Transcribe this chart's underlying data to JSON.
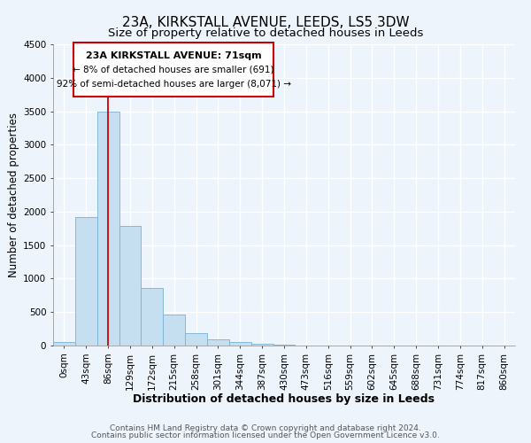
{
  "title": "23A, KIRKSTALL AVENUE, LEEDS, LS5 3DW",
  "subtitle": "Size of property relative to detached houses in Leeds",
  "xlabel": "Distribution of detached houses by size in Leeds",
  "ylabel": "Number of detached properties",
  "bar_labels": [
    "0sqm",
    "43sqm",
    "86sqm",
    "129sqm",
    "172sqm",
    "215sqm",
    "258sqm",
    "301sqm",
    "344sqm",
    "387sqm",
    "430sqm",
    "473sqm",
    "516sqm",
    "559sqm",
    "602sqm",
    "645sqm",
    "688sqm",
    "731sqm",
    "774sqm",
    "817sqm",
    "860sqm"
  ],
  "bar_values": [
    50,
    1920,
    3500,
    1790,
    860,
    460,
    185,
    95,
    55,
    30,
    10,
    5,
    0,
    0,
    0,
    0,
    0,
    0,
    0,
    0,
    0
  ],
  "bar_color": "#c5dff0",
  "bar_edge_color": "#7ab0d4",
  "ylim": [
    0,
    4500
  ],
  "yticks": [
    0,
    500,
    1000,
    1500,
    2000,
    2500,
    3000,
    3500,
    4000,
    4500
  ],
  "property_line_x": 1.975,
  "property_line_color": "#cc0000",
  "annotation_title": "23A KIRKSTALL AVENUE: 71sqm",
  "annotation_line1": "← 8% of detached houses are smaller (691)",
  "annotation_line2": "92% of semi-detached houses are larger (8,071) →",
  "annotation_box_color": "#ffffff",
  "annotation_box_edge_color": "#cc0000",
  "footer_line1": "Contains HM Land Registry data © Crown copyright and database right 2024.",
  "footer_line2": "Contains public sector information licensed under the Open Government Licence v3.0.",
  "background_color": "#eef4fb",
  "grid_color": "#ffffff",
  "title_fontsize": 11,
  "subtitle_fontsize": 9.5,
  "xlabel_fontsize": 9,
  "ylabel_fontsize": 8.5,
  "tick_fontsize": 7.5,
  "annotation_title_fontsize": 8,
  "annotation_text_fontsize": 7.5,
  "footer_fontsize": 6.5
}
